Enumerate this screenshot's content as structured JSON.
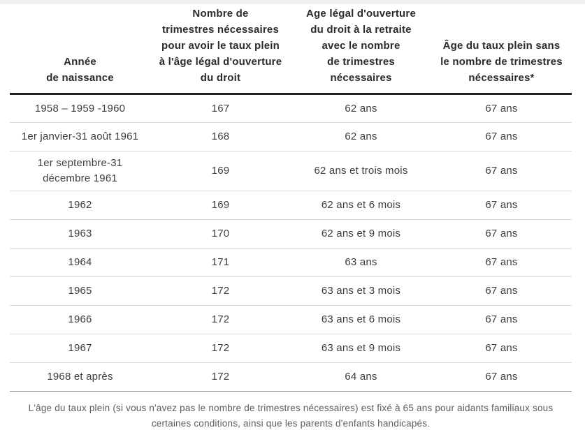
{
  "table": {
    "columns": [
      "Année\nde naissance",
      "Nombre de\ntrimestres nécessaires\npour avoir le taux plein\nà l'âge légal d'ouverture\ndu droit",
      "Age légal d'ouverture\ndu droit à la retraite\navec le nombre\nde trimestres\nnécessaires",
      "Âge du taux plein sans\nle nombre de trimestres\nnécessaires*"
    ],
    "rows": [
      [
        "1958 – 1959 -1960",
        "167",
        "62 ans",
        "67 ans"
      ],
      [
        "1er janvier-31 août 1961",
        "168",
        "62 ans",
        "67 ans"
      ],
      [
        "1er septembre-31\ndécembre 1961",
        "169",
        "62 ans et trois mois",
        "67 ans"
      ],
      [
        "1962",
        "169",
        "62 ans et 6 mois",
        "67 ans"
      ],
      [
        "1963",
        "170",
        "62 ans et 9 mois",
        "67 ans"
      ],
      [
        "1964",
        "171",
        "63 ans",
        "67 ans"
      ],
      [
        "1965",
        "172",
        "63 ans et 3 mois",
        "67 ans"
      ],
      [
        "1966",
        "172",
        "63 ans et 6 mois",
        "67 ans"
      ],
      [
        "1967",
        "172",
        "63 ans et 9 mois",
        "67 ans"
      ],
      [
        "1968 et après",
        "172",
        "64 ans",
        "67 ans"
      ]
    ]
  },
  "footnote": "L'âge du taux plein (si vous n'avez pas le nombre de trimestres nécessaires) est fixé à 65 ans pour aidants familiaux sous certaines conditions, ainsi que les parents d'enfants handicapés.",
  "colors": {
    "header_text": "#2b2b2b",
    "body_text": "#3d3d3d",
    "footnote_text": "#5c5c5c",
    "header_rule": "#222222",
    "row_separator": "#d8d8d8",
    "bottom_rule": "#8f8f8f"
  }
}
